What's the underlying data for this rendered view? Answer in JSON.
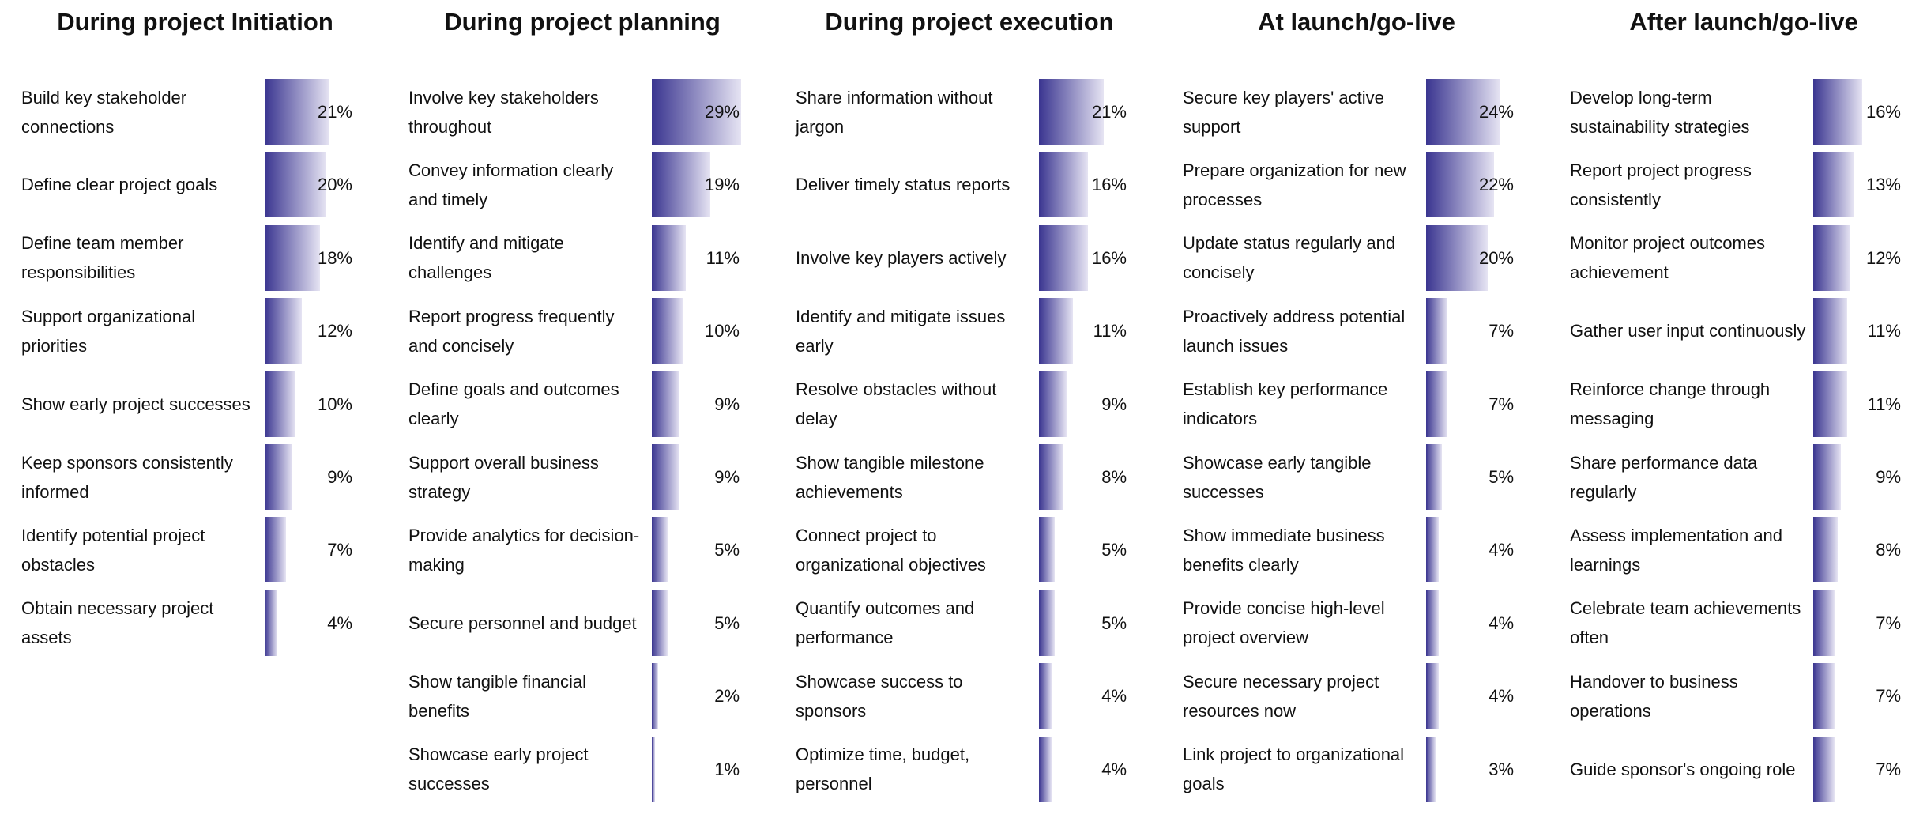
{
  "chart_data": [
    {
      "type": "bar",
      "title": "During project Initiation",
      "color": "#3a3590",
      "categories": [
        "Build key stakeholder connections",
        "Define clear project goals",
        "Define team member responsibilities",
        "Support organizational priorities",
        "Show early project successes",
        "Keep sponsors consistently informed",
        "Identify potential project obstacles",
        "Obtain necessary project assets"
      ],
      "values": [
        21,
        20,
        18,
        12,
        10,
        9,
        7,
        4
      ],
      "value_labels": [
        "21%",
        "20%",
        "18%",
        "12%",
        "10%",
        "9%",
        "7%",
        "4%"
      ]
    },
    {
      "type": "bar",
      "title": "During project planning",
      "color": "#3a3590",
      "categories": [
        "Involve key stakeholders throughout",
        "Convey information clearly and timely",
        "Identify and mitigate challenges",
        "Report progress frequently and concisely",
        "Define goals and outcomes clearly",
        "Support overall business strategy",
        "Provide analytics for decision-making",
        "Secure personnel and budget",
        "Show tangible financial benefits",
        "Showcase early project successes"
      ],
      "values": [
        29,
        19,
        11,
        10,
        9,
        9,
        5,
        5,
        2,
        1
      ],
      "value_labels": [
        "29%",
        "19%",
        "11%",
        "10%",
        "9%",
        "9%",
        "5%",
        "5%",
        "2%",
        "1%"
      ]
    },
    {
      "type": "bar",
      "title": "During project execution",
      "color": "#3a3590",
      "categories": [
        "Share information without jargon",
        "Deliver timely status reports",
        "Involve key players actively",
        "Identify and mitigate issues early",
        "Resolve obstacles without delay",
        "Show tangible milestone achievements",
        "Connect project to organizational objectives",
        "Quantify outcomes and performance",
        "Showcase success to sponsors",
        "Optimize time, budget, personnel"
      ],
      "values": [
        21,
        16,
        16,
        11,
        9,
        8,
        5,
        5,
        4,
        4
      ],
      "value_labels": [
        "21%",
        "16%",
        "16%",
        "11%",
        "9%",
        "8%",
        "5%",
        "5%",
        "4%",
        "4%"
      ]
    },
    {
      "type": "bar",
      "title": "At launch/go-live",
      "color": "#3a3590",
      "categories": [
        "Secure key players' active support",
        "Prepare organization for new processes",
        "Update status regularly and concisely",
        "Proactively address potential launch issues",
        "Establish key performance indicators",
        "Showcase early tangible successes",
        "Show immediate business benefits clearly",
        "Provide concise high-level project overview",
        "Secure necessary project resources now",
        "Link project to organizational goals"
      ],
      "values": [
        24,
        22,
        20,
        7,
        7,
        5,
        4,
        4,
        4,
        3
      ],
      "value_labels": [
        "24%",
        "22%",
        "20%",
        "7%",
        "7%",
        "5%",
        "4%",
        "4%",
        "4%",
        "3%"
      ]
    },
    {
      "type": "bar",
      "title": "After launch/go-live",
      "color": "#3a3590",
      "categories": [
        "Develop long-term sustainability strategies",
        "Report project progress consistently",
        "Monitor project outcomes achievement",
        "Gather user input continuously",
        "Reinforce change through messaging",
        "Share performance data regularly",
        "Assess implementation and learnings",
        "Celebrate team achievements often",
        "Handover to business operations",
        "Guide sponsor's ongoing role"
      ],
      "values": [
        16,
        13,
        12,
        11,
        11,
        9,
        8,
        7,
        7,
        7
      ],
      "value_labels": [
        "16%",
        "13%",
        "12%",
        "11%",
        "11%",
        "9%",
        "8%",
        "7%",
        "7%",
        "7%"
      ]
    }
  ]
}
